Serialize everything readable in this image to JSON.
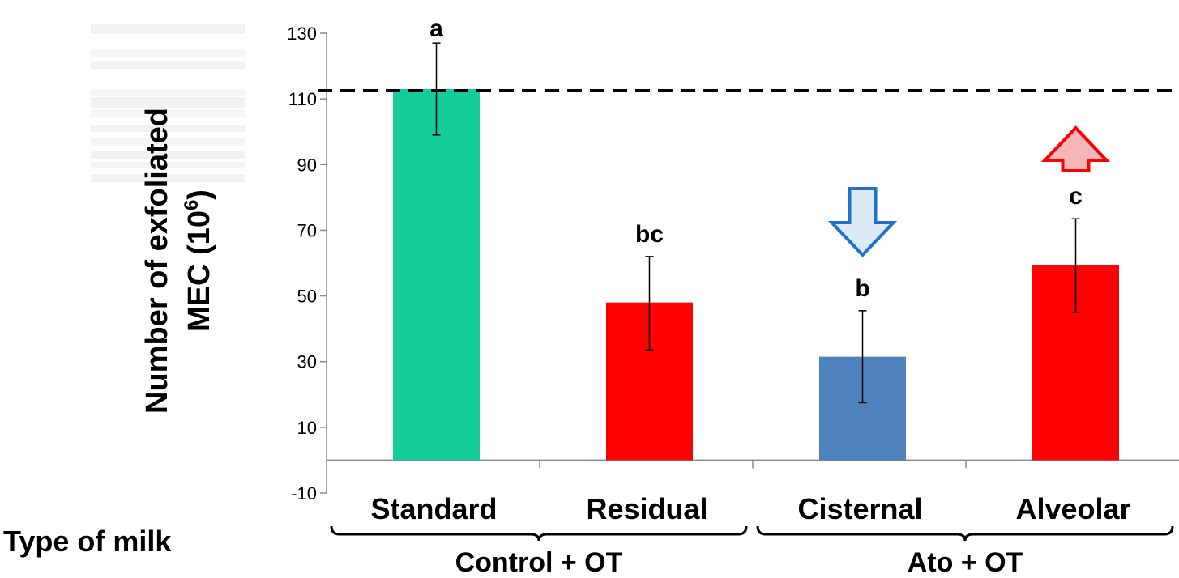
{
  "chart_data": {
    "type": "bar",
    "ylabel_line1": "Number of exfoliated",
    "ylabel_line2_prefix": "MEC (10",
    "ylabel_line2_sup": "6",
    "ylabel_line2_suffix": ")",
    "xlabel": "Type of milk",
    "ylim": [
      -10,
      130
    ],
    "yticks": [
      -10,
      10,
      30,
      50,
      70,
      90,
      110,
      130
    ],
    "categories": [
      "Standard",
      "Residual",
      "Cisternal",
      "Alveolar"
    ],
    "values": [
      113,
      48,
      31.5,
      59.5
    ],
    "error_low": [
      99,
      33.5,
      17.5,
      45
    ],
    "error_high": [
      127,
      62,
      45.5,
      73.5
    ],
    "significance": [
      "a",
      "bc",
      "b",
      "c"
    ],
    "colors": [
      "#14CC99",
      "#FF0000",
      "#4F81BD",
      "#FF0000"
    ],
    "reference_line": 112.5,
    "groups": [
      {
        "label": "Control + OT",
        "categories": [
          "Standard",
          "Residual"
        ]
      },
      {
        "label": "Ato + OT",
        "categories": [
          "Cisternal",
          "Alveolar"
        ]
      }
    ],
    "arrows": [
      {
        "direction": "down",
        "category": "Cisternal",
        "fill": "#DCEAF7",
        "stroke": "#1E73C8"
      },
      {
        "direction": "up",
        "category": "Alveolar",
        "fill": "#F4B6B6",
        "stroke": "#FF0000"
      }
    ],
    "grid": false,
    "legend": "none"
  }
}
